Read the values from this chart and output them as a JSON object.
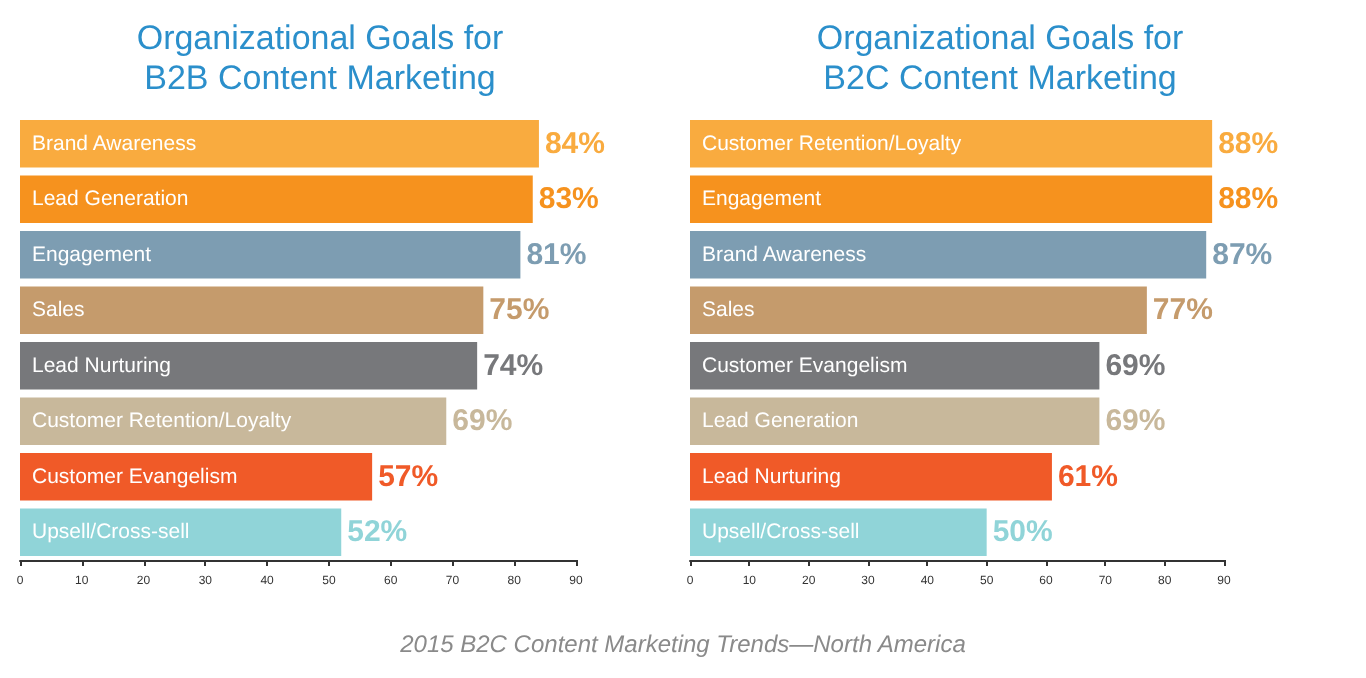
{
  "chart_data": [
    {
      "type": "bar",
      "orientation": "horizontal",
      "title": "Organizational Goals for\nB2B Content Marketing",
      "categories": [
        "Brand Awareness",
        "Lead Generation",
        "Engagement",
        "Sales",
        "Lead Nurturing",
        "Customer Retention/Loyalty",
        "Customer Evangelism",
        "Upsell/Cross-sell"
      ],
      "values": [
        84,
        83,
        81,
        75,
        74,
        69,
        57,
        52
      ],
      "value_labels": [
        "84%",
        "83%",
        "81%",
        "75%",
        "74%",
        "69%",
        "57%",
        "52%"
      ],
      "colors": [
        "#f9ab3f",
        "#f6921e",
        "#7d9db2",
        "#c59b6c",
        "#77787b",
        "#c8b89b",
        "#f05a28",
        "#90d4d8"
      ],
      "xlim": [
        0,
        90
      ],
      "xticks": [
        0,
        10,
        20,
        30,
        40,
        50,
        60,
        70,
        80,
        90
      ],
      "annotations": [
        "2015 B2C Content Marketing Trends—North America"
      ]
    },
    {
      "type": "bar",
      "orientation": "horizontal",
      "title": "Organizational Goals for\nB2C Content Marketing",
      "categories": [
        "Customer Retention/Loyalty",
        "Engagement",
        "Brand Awareness",
        "Sales",
        "Customer Evangelism",
        "Lead Generation",
        "Lead Nurturing",
        "Upsell/Cross-sell"
      ],
      "values": [
        88,
        88,
        87,
        77,
        69,
        69,
        61,
        50
      ],
      "value_labels": [
        "88%",
        "88%",
        "87%",
        "77%",
        "69%",
        "69%",
        "61%",
        "50%"
      ],
      "colors": [
        "#f9ab3f",
        "#f6921e",
        "#7d9db2",
        "#c59b6c",
        "#77787b",
        "#c8b89b",
        "#f05a28",
        "#90d4d8"
      ],
      "xlim": [
        0,
        90
      ],
      "xticks": [
        0,
        10,
        20,
        30,
        40,
        50,
        60,
        70,
        80,
        90
      ]
    }
  ]
}
